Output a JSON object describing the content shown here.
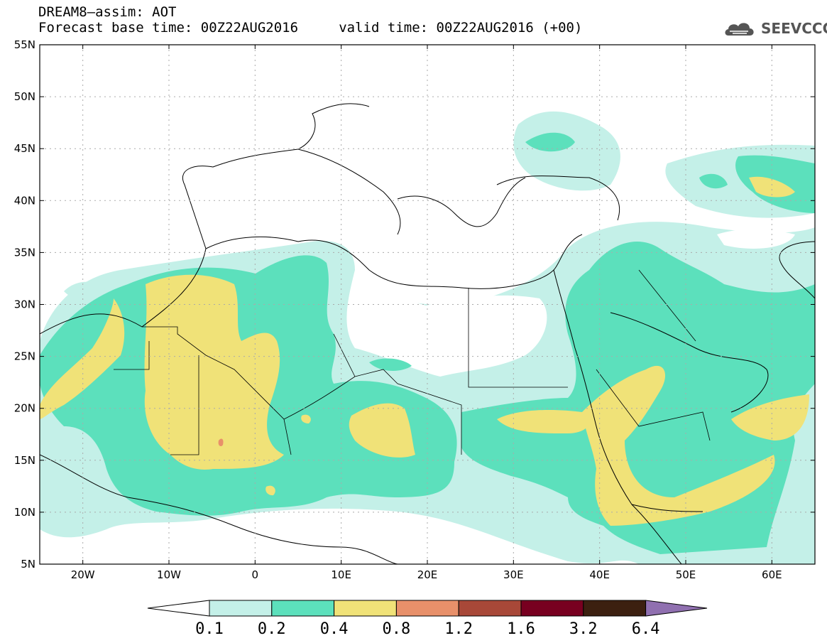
{
  "header": {
    "title_line1": "DREAM8–assim: AOT",
    "title_line2": "Forecast base time: 00Z22AUG2016     valid time: 00Z22AUG2016 (+00)"
  },
  "logo": {
    "text": "SEEVCCC",
    "icon": "cloud-icon"
  },
  "map": {
    "lon_range": [
      -25,
      65
    ],
    "lat_range": [
      5,
      55
    ],
    "lat_ticks": [
      "55N",
      "50N",
      "45N",
      "40N",
      "35N",
      "30N",
      "25N",
      "20N",
      "15N",
      "10N",
      "5N"
    ],
    "lon_ticks": [
      "20W",
      "10W",
      "0",
      "10E",
      "20E",
      "30E",
      "40E",
      "50E",
      "60E"
    ],
    "grid": "dotted"
  },
  "colorbar": {
    "labels": [
      "0.1",
      "0.2",
      "0.4",
      "0.8",
      "1.2",
      "1.6",
      "3.2",
      "6.4"
    ],
    "colors": [
      "#ffffff",
      "#c4f0e8",
      "#5ce0bc",
      "#f0e278",
      "#e8906a",
      "#a84838",
      "#780020",
      "#3c2010",
      "#9070b0"
    ]
  }
}
